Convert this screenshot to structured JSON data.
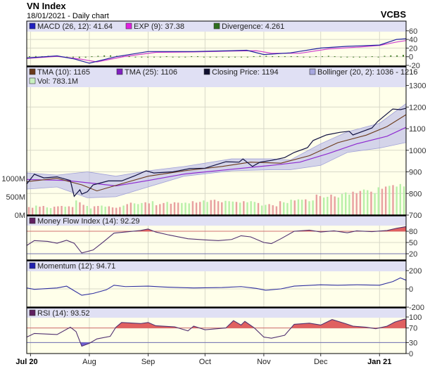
{
  "header": {
    "title": "VN Index",
    "subtitle": "18/01/2021 - Daily chart",
    "brand": "VCBS"
  },
  "colors": {
    "plot_bg": "#FFFFEA",
    "legend_bg": "#E0E0F4",
    "macd": "#2020A0",
    "exp": "#D040D0",
    "divergence": "#3C7A1E",
    "tma10": "#6B3A1A",
    "tma25": "#8E2BD0",
    "close": "#101040",
    "bollinger": "#B0B0E8",
    "vol_up": "#B8F0A8",
    "vol_down": "#E8A0A0",
    "overbought": "#E06060",
    "oversold": "#7060D0",
    "mfi": "#503070",
    "momentum": "#3030A0",
    "rsi": "#503070"
  },
  "chart_data": [
    {
      "type": "line",
      "panel": "macd",
      "legend": [
        {
          "label": "MACD (26, 12): 41.64",
          "color": "#2020C0"
        },
        {
          "label": "EXP (9): 37.38",
          "color": "#E020E0"
        },
        {
          "label": "Divergence: 4.261",
          "color": "#2E6E1E"
        }
      ],
      "yticks": [
        "60",
        "40",
        "20",
        "0",
        "-20"
      ],
      "ylim": [
        -20,
        60
      ],
      "macd": {
        "x": [
          "2020-06-29",
          "2020-07-15",
          "2020-07-24",
          "2020-08-01",
          "2020-08-15",
          "2020-09-01",
          "2020-09-25",
          "2020-10-15",
          "2020-10-23",
          "2020-11-01",
          "2020-11-15",
          "2020-12-01",
          "2020-12-15",
          "2021-01-01",
          "2021-01-10",
          "2021-01-15"
        ],
        "y": [
          -3,
          2,
          -5,
          -15,
          0,
          12,
          12,
          14,
          15,
          5,
          9,
          20,
          24,
          27,
          40,
          41.64
        ]
      },
      "exp": {
        "x": [
          "2020-06-29",
          "2020-07-15",
          "2020-07-28",
          "2020-08-05",
          "2020-08-20",
          "2020-09-05",
          "2020-09-25",
          "2020-10-15",
          "2020-10-28",
          "2020-11-05",
          "2020-11-20",
          "2020-12-05",
          "2020-12-20",
          "2021-01-01",
          "2021-01-10",
          "2021-01-15"
        ],
        "y": [
          -4,
          1,
          -6,
          -12,
          1,
          10,
          11,
          13,
          14,
          8,
          8,
          18,
          22,
          26,
          34,
          37.38
        ]
      },
      "divergence": [
        1,
        1.5,
        1,
        2,
        2,
        1,
        -1,
        -2,
        -3,
        -2,
        1,
        2,
        3,
        3,
        2,
        1.5,
        1,
        0,
        0,
        0,
        0,
        0,
        1,
        0,
        0,
        0,
        1,
        1,
        0,
        0,
        -1,
        -1,
        -2,
        -1,
        0,
        0,
        1,
        2,
        2,
        1,
        1,
        1,
        1,
        1,
        0,
        0,
        1,
        1,
        2,
        1,
        0,
        0,
        0,
        0,
        0,
        1,
        0,
        2,
        3,
        3,
        4.261
      ]
    },
    {
      "type": "line",
      "panel": "price",
      "legend": [
        {
          "label": "TMA (10): 1165",
          "color": "#6B3A1A"
        },
        {
          "label": "TMA (25): 1106",
          "color": "#8020C0"
        },
        {
          "label": "Closing Price: 1194",
          "color": "#101030"
        },
        {
          "label": "Bollinger (20, 2): 1036 - 1216",
          "color": "#A8A8E0"
        },
        {
          "label": "Vol: 783.1M",
          "color": "#C8F0C0"
        }
      ],
      "yticks": [
        "1300",
        "1200",
        "1100",
        "1000",
        "900",
        "800",
        "700"
      ],
      "ylim": [
        700,
        1300
      ],
      "vol_ticks": [
        "1000M",
        "500M",
        "0M"
      ],
      "close": {
        "x": [
          "2020-06-29",
          "2020-07-03",
          "2020-07-08",
          "2020-07-15",
          "2020-07-22",
          "2020-07-24",
          "2020-07-27",
          "2020-07-28",
          "2020-07-31",
          "2020-08-03",
          "2020-08-11",
          "2020-08-18",
          "2020-08-25",
          "2020-08-31",
          "2020-09-04",
          "2020-09-14",
          "2020-09-23",
          "2020-10-01",
          "2020-10-12",
          "2020-10-19",
          "2020-10-21",
          "2020-10-26",
          "2020-10-30",
          "2020-11-05",
          "2020-11-12",
          "2020-11-17",
          "2020-11-24",
          "2020-11-27",
          "2020-12-04",
          "2020-12-11",
          "2020-12-16",
          "2020-12-18",
          "2020-12-28",
          "2020-12-31",
          "2021-01-08",
          "2021-01-12",
          "2021-01-15"
        ],
        "y": [
          844,
          889,
          872,
          877,
          860,
          787,
          817,
          797,
          808,
          840,
          858,
          858,
          882,
          905,
          895,
          900,
          915,
          917,
          947,
          945,
          960,
          925,
          945,
          953,
          966,
          990,
          1012,
          1045,
          1071,
          1083,
          1088,
          1071,
          1103,
          1133,
          1191,
          1188,
          1194
        ]
      },
      "tma10": {
        "x": [
          "2020-06-29",
          "2020-07-15",
          "2020-07-28",
          "2020-08-05",
          "2020-08-20",
          "2020-09-01",
          "2020-09-20",
          "2020-10-10",
          "2020-10-25",
          "2020-11-10",
          "2020-11-25",
          "2020-12-10",
          "2020-12-25",
          "2021-01-05",
          "2021-01-15"
        ],
        "y": [
          855,
          870,
          840,
          812,
          850,
          880,
          905,
          925,
          945,
          940,
          975,
          1035,
          1070,
          1110,
          1165
        ]
      },
      "tma25": {
        "x": [
          "2020-06-29",
          "2020-07-20",
          "2020-08-05",
          "2020-08-15",
          "2020-09-01",
          "2020-09-20",
          "2020-10-15",
          "2020-11-05",
          "2020-11-20",
          "2020-12-05",
          "2020-12-20",
          "2021-01-05",
          "2021-01-15"
        ],
        "y": [
          865,
          860,
          845,
          835,
          860,
          890,
          912,
          930,
          945,
          985,
          1030,
          1065,
          1106
        ]
      },
      "bollinger": {
        "x": [
          "2020-06-29",
          "2020-07-15",
          "2020-07-31",
          "2020-08-15",
          "2020-09-01",
          "2020-09-20",
          "2020-10-15",
          "2020-11-05",
          "2020-11-15",
          "2020-12-01",
          "2020-12-15",
          "2021-01-01",
          "2021-01-15"
        ],
        "upper": [
          895,
          885,
          900,
          880,
          905,
          925,
          960,
          960,
          955,
          1030,
          1085,
          1125,
          1216
        ],
        "lower": [
          820,
          830,
          780,
          785,
          830,
          880,
          905,
          910,
          910,
          930,
          990,
          1010,
          1036
        ]
      },
      "volume_m": [
        220,
        200,
        260,
        230,
        250,
        210,
        190,
        230,
        240,
        250,
        230,
        240,
        220,
        400,
        350,
        280,
        250,
        180,
        240,
        250,
        260,
        230,
        240,
        210,
        200,
        220,
        260,
        300,
        340,
        320,
        300,
        330,
        350,
        320,
        380,
        270,
        300,
        330,
        360,
        310,
        350,
        340,
        330,
        340,
        320,
        380,
        340,
        360,
        400,
        360,
        410,
        420,
        380,
        350,
        390,
        380,
        370,
        360,
        340,
        380,
        350,
        380,
        360,
        330,
        260,
        280,
        300,
        270,
        240,
        380,
        350,
        330,
        420,
        400,
        430,
        420,
        430,
        380,
        400,
        560,
        520,
        480,
        500,
        560,
        510,
        480,
        580,
        620,
        560,
        640,
        600,
        660,
        700,
        680,
        640,
        600,
        760,
        720,
        780,
        800,
        820,
        780,
        850,
        783.1
      ],
      "volume_dir": "ddudduuddduddudduudduuddddudduuudduddduddduuuddduudddduuududuuuduudddduuuduuduudduudduuuuddduuduudduduuuduuu"
    },
    {
      "type": "line",
      "panel": "mfi",
      "legend": [
        {
          "label": "Money Flow Index (14): 92.29",
          "color": "#602060"
        }
      ],
      "yticks": [
        "80",
        "50",
        "20"
      ],
      "levels": [
        80,
        20
      ],
      "x": [
        "2020-06-29",
        "2020-07-03",
        "2020-07-10",
        "2020-07-15",
        "2020-07-20",
        "2020-07-24",
        "2020-07-28",
        "2020-08-03",
        "2020-08-08",
        "2020-08-14",
        "2020-08-20",
        "2020-08-28",
        "2020-09-01",
        "2020-09-05",
        "2020-09-12",
        "2020-09-22",
        "2020-10-01",
        "2020-10-08",
        "2020-10-15",
        "2020-10-20",
        "2020-10-25",
        "2020-11-01",
        "2020-11-05",
        "2020-11-10",
        "2020-11-17",
        "2020-11-25",
        "2020-12-01",
        "2020-12-08",
        "2020-12-15",
        "2020-12-20",
        "2020-12-28",
        "2021-01-05",
        "2021-01-10",
        "2021-01-15"
      ],
      "y": [
        42,
        55,
        53,
        48,
        56,
        48,
        22,
        30,
        50,
        75,
        78,
        82,
        86,
        78,
        70,
        60,
        57,
        55,
        58,
        68,
        65,
        50,
        47,
        60,
        80,
        83,
        78,
        81,
        76,
        81,
        79,
        82,
        88,
        92.29
      ]
    },
    {
      "type": "line",
      "panel": "momentum",
      "legend": [
        {
          "label": "Momentum (12): 94.71",
          "color": "#2020B0"
        }
      ],
      "yticks": [
        "200",
        "0",
        "-200"
      ],
      "x": [
        "2020-06-29",
        "2020-07-03",
        "2020-07-15",
        "2020-07-20",
        "2020-07-24",
        "2020-07-28",
        "2020-08-03",
        "2020-08-10",
        "2020-08-14",
        "2020-08-20",
        "2020-09-01",
        "2020-09-10",
        "2020-09-25",
        "2020-10-10",
        "2020-10-20",
        "2020-10-28",
        "2020-11-02",
        "2020-11-10",
        "2020-11-17",
        "2020-12-01",
        "2020-12-10",
        "2020-12-20",
        "2021-01-01",
        "2021-01-08",
        "2021-01-12",
        "2021-01-15"
      ],
      "y": [
        10,
        -5,
        10,
        30,
        -20,
        -70,
        -50,
        -10,
        40,
        25,
        30,
        20,
        10,
        15,
        25,
        5,
        -15,
        0,
        30,
        45,
        40,
        45,
        40,
        80,
        120,
        94.71
      ]
    },
    {
      "type": "line",
      "panel": "rsi",
      "legend": [
        {
          "label": "RSI (14): 93.52",
          "color": "#602060"
        }
      ],
      "yticks": [
        "100",
        "70",
        "30",
        "0"
      ],
      "levels": [
        70,
        30
      ],
      "x": [
        "2020-06-29",
        "2020-07-03",
        "2020-07-15",
        "2020-07-22",
        "2020-07-25",
        "2020-07-28",
        "2020-08-01",
        "2020-08-05",
        "2020-08-12",
        "2020-08-15",
        "2020-08-18",
        "2020-08-28",
        "2020-09-01",
        "2020-09-05",
        "2020-09-15",
        "2020-09-22",
        "2020-09-25",
        "2020-10-01",
        "2020-10-12",
        "2020-10-16",
        "2020-10-20",
        "2020-10-22",
        "2020-10-27",
        "2020-11-01",
        "2020-11-05",
        "2020-11-12",
        "2020-11-17",
        "2020-11-25",
        "2020-12-01",
        "2020-12-07",
        "2020-12-14",
        "2020-12-18",
        "2020-12-25",
        "2020-12-30",
        "2021-01-05",
        "2021-01-09",
        "2021-01-14",
        "2021-01-15"
      ],
      "y": [
        45,
        55,
        52,
        72,
        60,
        20,
        28,
        40,
        47,
        72,
        85,
        82,
        85,
        76,
        73,
        62,
        75,
        65,
        70,
        90,
        78,
        88,
        70,
        45,
        42,
        50,
        80,
        83,
        78,
        93,
        82,
        75,
        72,
        68,
        75,
        86,
        94,
        93.52
      ]
    }
  ],
  "xaxis": {
    "domain": [
      "2020-06-29",
      "2021-01-15"
    ],
    "ticks": [
      {
        "date": "2020-07-01",
        "label": "Jul 20",
        "bold": true
      },
      {
        "date": "2020-08-01",
        "label": "Aug"
      },
      {
        "date": "2020-09-01",
        "label": "Sep"
      },
      {
        "date": "2020-10-01",
        "label": "Oct"
      },
      {
        "date": "2020-11-01",
        "label": "Nov"
      },
      {
        "date": "2020-12-01",
        "label": "Dec"
      },
      {
        "date": "2021-01-01",
        "label": "Jan 21",
        "bold": true
      }
    ]
  }
}
